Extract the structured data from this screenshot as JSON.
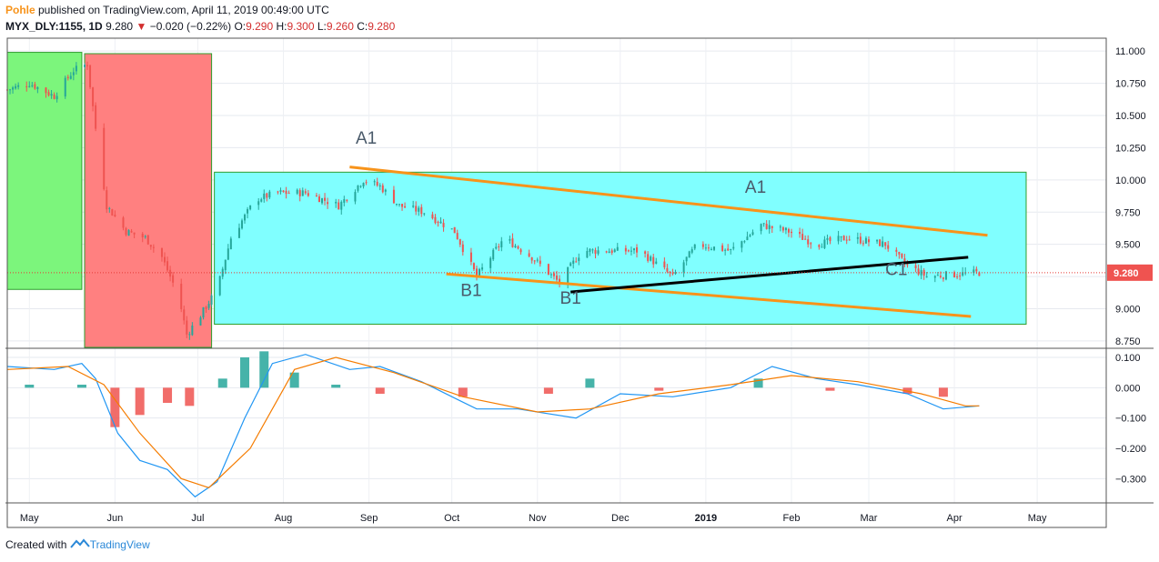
{
  "header": {
    "author": "Pohle",
    "published_text": " published on TradingView.com, April 11, 2019 00:49:00 UTC",
    "symbol": "MYX_DLY:1155, 1D",
    "last": "9.280",
    "change_arrow": "▼",
    "change": "−0.020 (−0.22%)",
    "o_label": "O:",
    "o_value": "9.290",
    "h_label": "H:",
    "h_value": "9.300",
    "l_label": "L:",
    "l_value": "9.260",
    "c_label": "C:",
    "c_value": "9.280"
  },
  "footer": {
    "prefix": "Created with",
    "brand": "TradingView",
    "logo_icon": "tradingview-logo-icon"
  },
  "colors": {
    "up": "#26a69a",
    "down": "#ef5350",
    "macd": "#2196f3",
    "signal": "#f57c00",
    "channel": "#f7931a",
    "trend": "#000000",
    "box_cyan": "#80ffff",
    "box_green": "#7cf57c",
    "box_red": "#ff8080"
  },
  "chart_data": [
    {
      "type": "candlestick",
      "price_axis_ticks": [
        "11.000",
        "10.750",
        "10.500",
        "10.250",
        "10.000",
        "9.750",
        "9.500",
        "9.250",
        "9.000",
        "8.750"
      ],
      "ylim": [
        8.7,
        11.1
      ],
      "last_price_label": "9.280",
      "last_price": 9.28,
      "time_axis_ticks": [
        "May",
        "Jun",
        "Jul",
        "Aug",
        "Sep",
        "Oct",
        "Nov",
        "Dec",
        "2019",
        "Feb",
        "Mar",
        "Apr",
        "May"
      ],
      "x_range": [
        "2018-04-23",
        "2019-05-26"
      ],
      "grid": true,
      "closes": [
        {
          "date": "2018-04-23",
          "close": 10.7
        },
        {
          "date": "2018-05-01",
          "close": 10.75
        },
        {
          "date": "2018-05-10",
          "close": 10.65
        },
        {
          "date": "2018-05-17",
          "close": 10.85
        },
        {
          "date": "2018-05-22",
          "close": 10.9
        },
        {
          "date": "2018-05-25",
          "close": 10.4
        },
        {
          "date": "2018-05-29",
          "close": 9.8
        },
        {
          "date": "2018-06-05",
          "close": 9.6
        },
        {
          "date": "2018-06-12",
          "close": 9.55
        },
        {
          "date": "2018-06-18",
          "close": 9.4
        },
        {
          "date": "2018-06-24",
          "close": 9.1
        },
        {
          "date": "2018-06-27",
          "close": 8.8
        },
        {
          "date": "2018-07-02",
          "close": 8.95
        },
        {
          "date": "2018-07-08",
          "close": 9.15
        },
        {
          "date": "2018-07-13",
          "close": 9.55
        },
        {
          "date": "2018-07-22",
          "close": 9.85
        },
        {
          "date": "2018-07-30",
          "close": 9.9
        },
        {
          "date": "2018-08-09",
          "close": 9.9
        },
        {
          "date": "2018-08-21",
          "close": 9.8
        },
        {
          "date": "2018-08-30",
          "close": 10.0
        },
        {
          "date": "2018-09-05",
          "close": 9.95
        },
        {
          "date": "2018-09-12",
          "close": 9.8
        },
        {
          "date": "2018-09-21",
          "close": 9.75
        },
        {
          "date": "2018-10-02",
          "close": 9.6
        },
        {
          "date": "2018-10-10",
          "close": 9.25
        },
        {
          "date": "2018-10-20",
          "close": 9.55
        },
        {
          "date": "2018-10-30",
          "close": 9.4
        },
        {
          "date": "2018-11-09",
          "close": 9.2
        },
        {
          "date": "2018-11-17",
          "close": 9.45
        },
        {
          "date": "2018-11-28",
          "close": 9.45
        },
        {
          "date": "2018-12-08",
          "close": 9.45
        },
        {
          "date": "2018-12-20",
          "close": 9.25
        },
        {
          "date": "2018-12-29",
          "close": 9.5
        },
        {
          "date": "2019-01-10",
          "close": 9.45
        },
        {
          "date": "2019-01-21",
          "close": 9.65
        },
        {
          "date": "2019-01-31",
          "close": 9.6
        },
        {
          "date": "2019-02-10",
          "close": 9.5
        },
        {
          "date": "2019-02-21",
          "close": 9.55
        },
        {
          "date": "2019-03-07",
          "close": 9.5
        },
        {
          "date": "2019-03-14",
          "close": 9.35
        },
        {
          "date": "2019-03-22",
          "close": 9.25
        },
        {
          "date": "2019-04-03",
          "close": 9.27
        },
        {
          "date": "2019-04-10",
          "close": 9.28
        }
      ],
      "annotations": [
        {
          "text": "A1",
          "date": "2018-08-31",
          "price": 10.28
        },
        {
          "text": "A1",
          "date": "2019-01-19",
          "price": 9.9
        },
        {
          "text": "B1",
          "date": "2018-10-08",
          "price": 9.1
        },
        {
          "text": "B1",
          "date": "2018-11-13",
          "price": 9.04
        },
        {
          "text": "C1",
          "date": "2019-03-11",
          "price": 9.26
        }
      ],
      "trendlines": [
        {
          "kind": "channel-top",
          "from": {
            "date": "2018-08-25",
            "price": 10.1
          },
          "to": {
            "date": "2019-04-13",
            "price": 9.57
          }
        },
        {
          "kind": "channel-bottom",
          "from": {
            "date": "2018-09-29",
            "price": 9.27
          },
          "to": {
            "date": "2019-04-07",
            "price": 8.94
          }
        },
        {
          "kind": "trend",
          "from": {
            "date": "2018-11-13",
            "price": 9.13
          },
          "to": {
            "date": "2019-04-06",
            "price": 9.4
          }
        }
      ],
      "boxes": [
        {
          "kind": "green",
          "from": {
            "date": "2018-04-23",
            "price": 10.99
          },
          "to": {
            "date": "2018-05-20",
            "price": 9.15
          }
        },
        {
          "kind": "red",
          "from": {
            "date": "2018-05-21",
            "price": 10.98
          },
          "to": {
            "date": "2018-07-06",
            "price": 8.7
          }
        },
        {
          "kind": "cyan",
          "from": {
            "date": "2018-07-07",
            "price": 10.06
          },
          "to": {
            "date": "2019-04-27",
            "price": 8.88
          }
        }
      ]
    },
    {
      "type": "macd",
      "axis_ticks": [
        "0.100",
        "0.000",
        "−0.100",
        "−0.200",
        "−0.300"
      ],
      "ylim": [
        -0.38,
        0.13
      ],
      "series": [
        {
          "name": "macd",
          "points": [
            {
              "date": "2018-04-23",
              "value": 0.07
            },
            {
              "date": "2018-05-10",
              "value": 0.06
            },
            {
              "date": "2018-05-20",
              "value": 0.08
            },
            {
              "date": "2018-05-25",
              "value": 0.03
            },
            {
              "date": "2018-06-02",
              "value": -0.15
            },
            {
              "date": "2018-06-10",
              "value": -0.24
            },
            {
              "date": "2018-06-20",
              "value": -0.27
            },
            {
              "date": "2018-06-30",
              "value": -0.36
            },
            {
              "date": "2018-07-08",
              "value": -0.31
            },
            {
              "date": "2018-07-18",
              "value": -0.1
            },
            {
              "date": "2018-07-28",
              "value": 0.08
            },
            {
              "date": "2018-08-09",
              "value": 0.11
            },
            {
              "date": "2018-08-25",
              "value": 0.06
            },
            {
              "date": "2018-09-05",
              "value": 0.07
            },
            {
              "date": "2018-09-20",
              "value": 0.02
            },
            {
              "date": "2018-10-10",
              "value": -0.07
            },
            {
              "date": "2018-10-25",
              "value": -0.07
            },
            {
              "date": "2018-11-15",
              "value": -0.1
            },
            {
              "date": "2018-12-01",
              "value": -0.02
            },
            {
              "date": "2018-12-20",
              "value": -0.03
            },
            {
              "date": "2019-01-10",
              "value": 0.0
            },
            {
              "date": "2019-01-25",
              "value": 0.07
            },
            {
              "date": "2019-02-10",
              "value": 0.03
            },
            {
              "date": "2019-02-25",
              "value": 0.01
            },
            {
              "date": "2019-03-15",
              "value": -0.02
            },
            {
              "date": "2019-03-28",
              "value": -0.07
            },
            {
              "date": "2019-04-10",
              "value": -0.06
            }
          ]
        },
        {
          "name": "signal",
          "points": [
            {
              "date": "2018-04-23",
              "value": 0.06
            },
            {
              "date": "2018-05-15",
              "value": 0.07
            },
            {
              "date": "2018-05-28",
              "value": 0.01
            },
            {
              "date": "2018-06-10",
              "value": -0.15
            },
            {
              "date": "2018-06-25",
              "value": -0.3
            },
            {
              "date": "2018-07-05",
              "value": -0.33
            },
            {
              "date": "2018-07-20",
              "value": -0.2
            },
            {
              "date": "2018-08-05",
              "value": 0.06
            },
            {
              "date": "2018-08-20",
              "value": 0.1
            },
            {
              "date": "2018-09-10",
              "value": 0.05
            },
            {
              "date": "2018-10-05",
              "value": -0.03
            },
            {
              "date": "2018-11-01",
              "value": -0.08
            },
            {
              "date": "2018-11-20",
              "value": -0.07
            },
            {
              "date": "2018-12-15",
              "value": -0.02
            },
            {
              "date": "2019-01-10",
              "value": 0.01
            },
            {
              "date": "2019-02-01",
              "value": 0.04
            },
            {
              "date": "2019-02-25",
              "value": 0.02
            },
            {
              "date": "2019-03-20",
              "value": -0.02
            },
            {
              "date": "2019-04-05",
              "value": -0.06
            },
            {
              "date": "2019-04-10",
              "value": -0.06
            }
          ]
        }
      ],
      "histogram": [
        {
          "date": "2018-05-01",
          "value": 0.01
        },
        {
          "date": "2018-05-20",
          "value": 0.01
        },
        {
          "date": "2018-06-01",
          "value": -0.13
        },
        {
          "date": "2018-06-10",
          "value": -0.09
        },
        {
          "date": "2018-06-20",
          "value": -0.05
        },
        {
          "date": "2018-06-28",
          "value": -0.06
        },
        {
          "date": "2018-07-10",
          "value": 0.03
        },
        {
          "date": "2018-07-18",
          "value": 0.1
        },
        {
          "date": "2018-07-25",
          "value": 0.12
        },
        {
          "date": "2018-08-05",
          "value": 0.05
        },
        {
          "date": "2018-08-20",
          "value": 0.01
        },
        {
          "date": "2018-09-05",
          "value": -0.02
        },
        {
          "date": "2018-10-05",
          "value": -0.03
        },
        {
          "date": "2018-11-05",
          "value": -0.02
        },
        {
          "date": "2018-11-20",
          "value": 0.03
        },
        {
          "date": "2018-12-15",
          "value": -0.01
        },
        {
          "date": "2019-01-20",
          "value": 0.03
        },
        {
          "date": "2019-02-15",
          "value": -0.01
        },
        {
          "date": "2019-03-15",
          "value": -0.02
        },
        {
          "date": "2019-03-28",
          "value": -0.03
        }
      ]
    }
  ]
}
